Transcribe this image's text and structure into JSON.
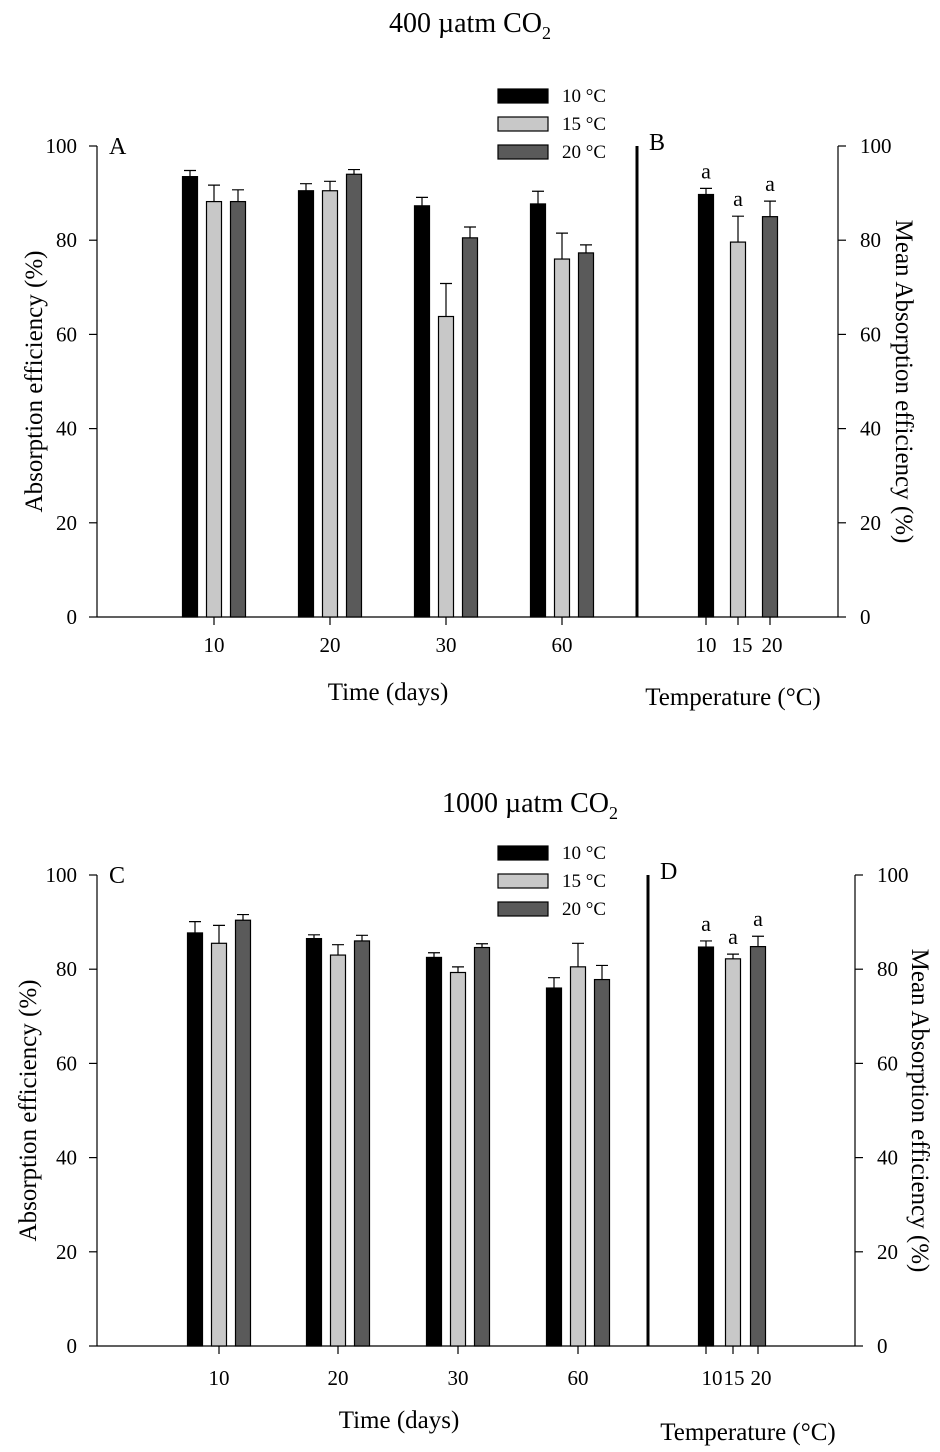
{
  "colors": {
    "c10": "#000000",
    "c15": "#c8c8c8",
    "c20": "#5a5a5a"
  },
  "chart_data": [
    {
      "type": "bar",
      "co2_title": "400 µatm CO",
      "co2_subscript": "2",
      "panel": "A",
      "xlabel": "Time (days)",
      "ylabel": "Absorption efficiency (%)",
      "ylim": [
        0,
        100
      ],
      "yticks": [
        "0",
        "20",
        "40",
        "60",
        "80",
        "100"
      ],
      "categories": [
        "10",
        "20",
        "30",
        "60"
      ],
      "series": [
        {
          "name": "10 °C",
          "values": [
            93.5,
            90.5,
            87.3,
            87.7
          ],
          "errors": [
            1.3,
            1.5,
            1.8,
            2.7
          ]
        },
        {
          "name": "15 °C",
          "values": [
            88.2,
            90.5,
            63.8,
            76.0
          ],
          "errors": [
            3.5,
            2.0,
            7.0,
            5.5
          ]
        },
        {
          "name": "20 °C",
          "values": [
            88.2,
            94.0,
            80.5,
            77.3
          ],
          "errors": [
            2.5,
            1.0,
            2.3,
            1.7
          ]
        }
      ],
      "legend": [
        "10 °C",
        "15 °C",
        "20 °C"
      ],
      "legend_position": "top-center"
    },
    {
      "type": "bar",
      "panel": "B",
      "xlabel": "Temperature (°C)",
      "ylabel": "Mean Absorption efficiency (%)",
      "ylim": [
        0,
        100
      ],
      "yticks": [
        "0",
        "20",
        "40",
        "60",
        "80",
        "100"
      ],
      "categories": [
        "10",
        "15",
        "20"
      ],
      "values": [
        89.7,
        79.6,
        85.0
      ],
      "errors": [
        1.3,
        5.5,
        3.3
      ],
      "annotations": [
        "a",
        "a",
        "a"
      ]
    },
    {
      "type": "bar",
      "co2_title": "1000 µatm CO",
      "co2_subscript": "2",
      "panel": "C",
      "xlabel": "Time (days)",
      "ylabel": "Absorption efficiency (%)",
      "ylim": [
        0,
        100
      ],
      "yticks": [
        "0",
        "20",
        "40",
        "60",
        "80",
        "100"
      ],
      "categories": [
        "10",
        "20",
        "30",
        "60"
      ],
      "series": [
        {
          "name": "10 °C",
          "values": [
            87.7,
            86.5,
            82.5,
            76.0
          ],
          "errors": [
            2.4,
            0.8,
            1.0,
            2.2
          ]
        },
        {
          "name": "15 °C",
          "values": [
            85.5,
            83.0,
            79.3,
            80.5
          ],
          "errors": [
            3.8,
            2.2,
            1.2,
            5.0
          ]
        },
        {
          "name": "20 °C",
          "values": [
            90.4,
            86.0,
            84.6,
            77.8
          ],
          "errors": [
            1.2,
            1.2,
            0.8,
            3.0
          ]
        }
      ],
      "legend": [
        "10 °C",
        "15 °C",
        "20 °C"
      ],
      "legend_position": "top-center"
    },
    {
      "type": "bar",
      "panel": "D",
      "xlabel": "Temperature (°C)",
      "ylabel": "Mean Absorption efficiency (%)",
      "ylim": [
        0,
        100
      ],
      "yticks": [
        "0",
        "20",
        "40",
        "60",
        "80",
        "100"
      ],
      "categories": [
        "10",
        "15",
        "20"
      ],
      "values": [
        84.7,
        82.2,
        84.8
      ],
      "errors": [
        1.3,
        1.0,
        2.2
      ],
      "annotations": [
        "a",
        "a",
        "a"
      ]
    }
  ]
}
